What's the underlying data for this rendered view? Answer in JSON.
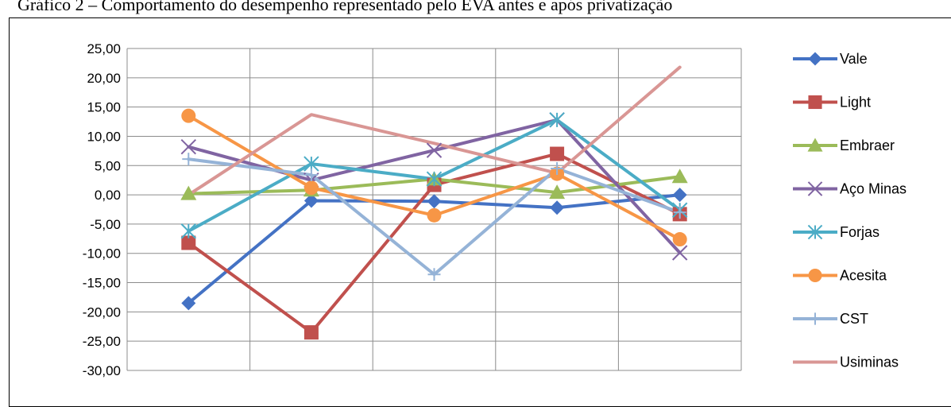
{
  "caption": "Gráfico 2 – Comportamento do desempenho representado pelo EVA antes e após privatização",
  "chart_data": {
    "type": "line",
    "title": "",
    "xlabel": "",
    "ylabel": "",
    "x": [
      1,
      2,
      3,
      4,
      5
    ],
    "ylim": [
      -30,
      25
    ],
    "yticks": [
      25,
      20,
      15,
      10,
      5,
      0,
      -5,
      -10,
      -15,
      -20,
      -25,
      -30
    ],
    "ytick_labels": [
      "25,00",
      "20,00",
      "15,00",
      "10,00",
      "5,00",
      "0,00",
      "-5,00",
      "-10,00",
      "-15,00",
      "-20,00",
      "-25,00",
      "-30,00"
    ],
    "grid": true,
    "legend": "right",
    "series": [
      {
        "name": "Vale",
        "color": "#4472C4",
        "marker": "diamond",
        "values": [
          -18.5,
          -1.0,
          -1.1,
          -2.2,
          0.0
        ]
      },
      {
        "name": "Light",
        "color": "#C0504D",
        "marker": "square",
        "values": [
          -8.2,
          -23.5,
          1.7,
          7.0,
          -3.3
        ]
      },
      {
        "name": "Embraer",
        "color": "#9BBB59",
        "marker": "triangle",
        "values": [
          0.2,
          0.8,
          2.7,
          0.4,
          3.1
        ]
      },
      {
        "name": "Aço Minas",
        "color": "#8064A2",
        "marker": "x",
        "values": [
          8.2,
          2.5,
          7.6,
          12.8,
          -9.9
        ]
      },
      {
        "name": "Forjas",
        "color": "#4BACC6",
        "marker": "star",
        "values": [
          -6.2,
          5.3,
          2.7,
          12.8,
          -2.6
        ]
      },
      {
        "name": "Acesita",
        "color": "#F79646",
        "marker": "circle",
        "values": [
          13.5,
          1.2,
          -3.5,
          3.6,
          -7.6
        ]
      },
      {
        "name": "CST",
        "color": "#95B3D7",
        "marker": "plus",
        "values": [
          6.1,
          3.4,
          -13.6,
          4.5,
          -3.0
        ]
      },
      {
        "name": "Usiminas",
        "color": "#D99694",
        "marker": "none",
        "values": [
          0.0,
          13.7,
          8.8,
          3.7,
          21.8
        ]
      }
    ]
  }
}
